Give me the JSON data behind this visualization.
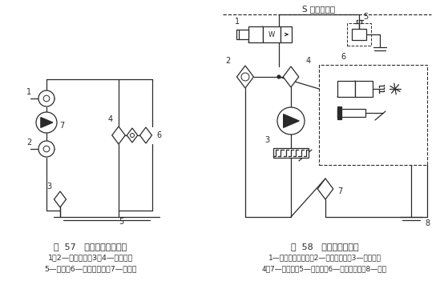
{
  "line_color": "#2a2a2a",
  "fig57_title": "图  57   过滤机液压原理图",
  "fig57_caption1": "1、2—三通球阀；3、4—过滤器；",
  "fig57_caption2": "5—油箱；6—压差继电器；7—过滤泵",
  "fig58_title": "图  58   信号压供油系统",
  "fig58_caption1": "1—二位三通电磁阀；2—压差继电器；3—信号泵；",
  "fig58_caption2": "4、7—过滤器；5—安全阀；6—压力先导阀；8—油箱",
  "s_label": "S 信号压力油"
}
